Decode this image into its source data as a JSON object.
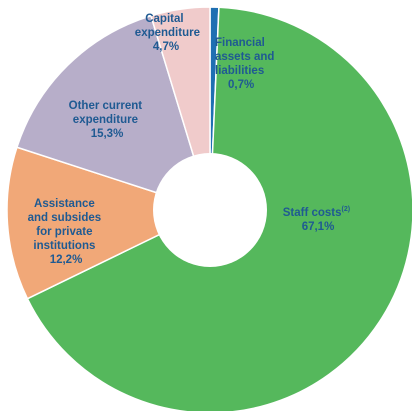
{
  "chart_data": {
    "type": "pie",
    "style": "donut",
    "slices": [
      {
        "label_lines": [
          "Financial",
          "assets and",
          "liabilities"
        ],
        "value_label": "0,7%",
        "value": 0.7,
        "color": "#1f6fb2",
        "label_color": "#1f5a92"
      },
      {
        "label_lines": [
          "Staff costs"
        ],
        "superscript": "(2)",
        "value_label": "67,1%",
        "value": 67.1,
        "color": "#55b85c",
        "label_color": "#1f5a92"
      },
      {
        "label_lines": [
          "Assistance",
          "and subsides",
          "for private",
          "institutions"
        ],
        "value_label": "12,2%",
        "value": 12.2,
        "color": "#f1a878",
        "label_color": "#1f5a92"
      },
      {
        "label_lines": [
          "Other current",
          "expenditure"
        ],
        "value_label": "15,3%",
        "value": 15.3,
        "color": "#b7aec9",
        "label_color": "#1f5a92"
      },
      {
        "label_lines": [
          "Capital",
          "expenditure"
        ],
        "value_label": "4,7%",
        "value": 4.7,
        "color": "#f0cbcb",
        "label_color": "#1f5a92"
      }
    ]
  }
}
